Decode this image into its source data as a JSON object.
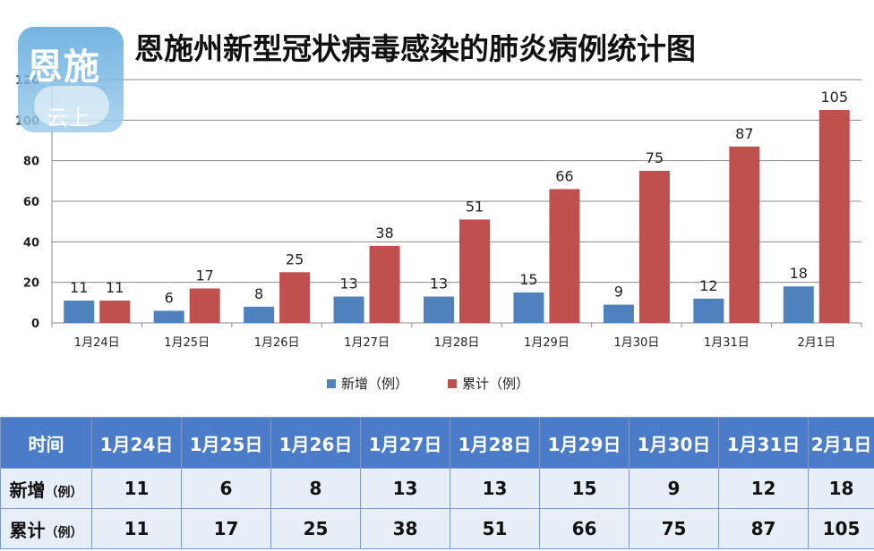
{
  "title": "恩施州新型冠状病毒感染的肺炎病例统计图",
  "logo": {
    "line1": "恩施",
    "line2": "云上"
  },
  "colors": {
    "new": "#4f81bd",
    "total": "#c0504d",
    "header": "#4a7cc9",
    "cell": "#e7eef8"
  },
  "chart_data": {
    "type": "bar",
    "categories": [
      "1月24日",
      "1月25日",
      "1月26日",
      "1月27日",
      "1月28日",
      "1月29日",
      "1月30日",
      "1月31日",
      "2月1日"
    ],
    "series": [
      {
        "name": "新增（例）",
        "values": [
          11,
          6,
          8,
          13,
          13,
          15,
          9,
          12,
          18
        ]
      },
      {
        "name": "累计（例）",
        "values": [
          11,
          17,
          25,
          38,
          51,
          66,
          75,
          87,
          105
        ]
      }
    ],
    "ylim": [
      0,
      120
    ],
    "yticks": [
      0,
      20,
      40,
      60,
      80,
      100,
      120
    ],
    "grid": true,
    "legend": "bottom"
  },
  "table": {
    "header_label": "时间",
    "rows": [
      {
        "label": "新增",
        "unit": "（例）"
      },
      {
        "label": "累计",
        "unit": "（例）"
      }
    ]
  }
}
